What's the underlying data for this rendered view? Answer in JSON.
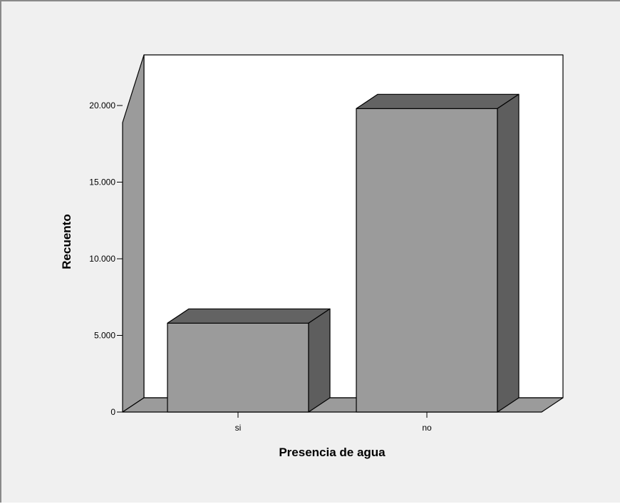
{
  "chart_data": {
    "type": "bar",
    "categories": [
      "si",
      "no"
    ],
    "values": [
      5800,
      19800
    ],
    "xlabel": "Presencia de agua",
    "ylabel": "Recuento",
    "ylim": [
      0,
      20000
    ],
    "ticks": [
      0,
      5000,
      10000,
      15000,
      20000
    ],
    "tick_labels": [
      "0",
      "5.000",
      "10.000",
      "15.000",
      "20.000"
    ],
    "grid": false,
    "style": "3d",
    "colors": {
      "background": "#f0f0f0",
      "plot_area": "#ffffff",
      "wall": "#9b9b9b",
      "bar_front": "#9b9b9b",
      "bar_top": "#636363",
      "bar_side": "#5e5e5e"
    }
  }
}
